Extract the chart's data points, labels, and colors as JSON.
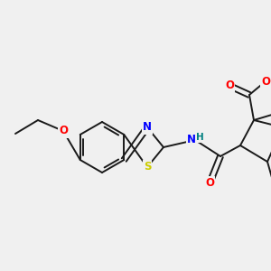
{
  "bg_color": "#f0f0f0",
  "bond_color": "#1a1a1a",
  "bond_width": 1.4,
  "atom_colors": {
    "N": "#0000ff",
    "O": "#ff0000",
    "S": "#cccc00",
    "H": "#008080",
    "C": "#1a1a1a"
  },
  "font_size": 8.5,
  "dpi": 100,
  "figsize": [
    3.0,
    3.0
  ],
  "xlim": [
    0,
    300
  ],
  "ylim": [
    0,
    300
  ]
}
